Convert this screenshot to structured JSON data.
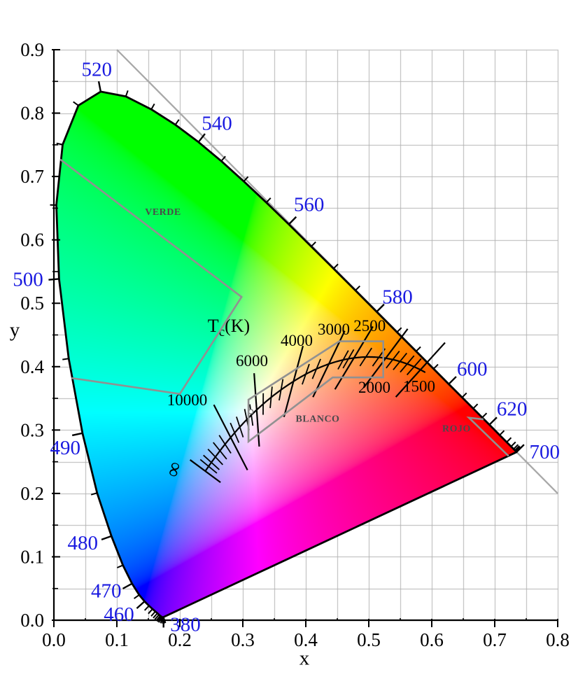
{
  "colors": {
    "background": "#ffffff",
    "grid": "#b5b5b5",
    "axis": "#000000",
    "locus_stroke": "#000000",
    "wavelength_label": "#1a1ae0",
    "xy1_line": "#a8a8a8",
    "planckian": "#000000",
    "region_outline": "#919191",
    "region_label": "#4a4a4a",
    "white_marker_stroke": "#808080"
  },
  "chart_data": {
    "type": "chromaticity-diagram",
    "title": "",
    "xlabel": "x",
    "ylabel": "y",
    "xlim": [
      0,
      0.8
    ],
    "ylim": [
      0,
      0.9
    ],
    "grid_step": 0.05,
    "label_step": 0.1,
    "x_tick_labels": [
      "0.0",
      "0.1",
      "0.2",
      "0.3",
      "0.4",
      "0.5",
      "0.6",
      "0.7",
      "0.8"
    ],
    "y_tick_labels": [
      "0.0",
      "0.1",
      "0.2",
      "0.3",
      "0.4",
      "0.5",
      "0.6",
      "0.7",
      "0.8",
      "0.9"
    ],
    "xy1_line": {
      "from": [
        0.1,
        0.9
      ],
      "to": [
        0.8,
        0.2
      ]
    },
    "spectral_locus": [
      [
        380,
        0.1741,
        0.005
      ],
      [
        385,
        0.174,
        0.005
      ],
      [
        390,
        0.1738,
        0.0049
      ],
      [
        395,
        0.1736,
        0.0049
      ],
      [
        400,
        0.1733,
        0.0048
      ],
      [
        405,
        0.173,
        0.0048
      ],
      [
        410,
        0.1726,
        0.0048
      ],
      [
        415,
        0.1721,
        0.0048
      ],
      [
        420,
        0.1714,
        0.0051
      ],
      [
        425,
        0.1703,
        0.0058
      ],
      [
        430,
        0.1689,
        0.0069
      ],
      [
        435,
        0.1669,
        0.0086
      ],
      [
        440,
        0.1644,
        0.0109
      ],
      [
        445,
        0.1611,
        0.0138
      ],
      [
        450,
        0.1566,
        0.0177
      ],
      [
        455,
        0.151,
        0.0227
      ],
      [
        460,
        0.144,
        0.0297
      ],
      [
        465,
        0.1355,
        0.0399
      ],
      [
        470,
        0.1241,
        0.0578
      ],
      [
        475,
        0.1096,
        0.0868
      ],
      [
        480,
        0.0913,
        0.1327
      ],
      [
        485,
        0.0687,
        0.2007
      ],
      [
        490,
        0.0454,
        0.295
      ],
      [
        495,
        0.0235,
        0.4127
      ],
      [
        500,
        0.0082,
        0.5384
      ],
      [
        505,
        0.0039,
        0.6548
      ],
      [
        510,
        0.0139,
        0.7502
      ],
      [
        515,
        0.0389,
        0.812
      ],
      [
        520,
        0.0743,
        0.8338
      ],
      [
        525,
        0.1142,
        0.8262
      ],
      [
        530,
        0.1547,
        0.8059
      ],
      [
        535,
        0.1929,
        0.7816
      ],
      [
        540,
        0.2296,
        0.7543
      ],
      [
        545,
        0.2658,
        0.7243
      ],
      [
        550,
        0.3016,
        0.6923
      ],
      [
        555,
        0.3373,
        0.6589
      ],
      [
        560,
        0.3731,
        0.6245
      ],
      [
        565,
        0.4087,
        0.5896
      ],
      [
        570,
        0.4441,
        0.5547
      ],
      [
        575,
        0.4788,
        0.5202
      ],
      [
        580,
        0.5125,
        0.4866
      ],
      [
        585,
        0.5448,
        0.4544
      ],
      [
        590,
        0.5752,
        0.4242
      ],
      [
        595,
        0.6029,
        0.3965
      ],
      [
        600,
        0.627,
        0.3725
      ],
      [
        605,
        0.6482,
        0.3514
      ],
      [
        610,
        0.6658,
        0.334
      ],
      [
        615,
        0.6801,
        0.3197
      ],
      [
        620,
        0.6915,
        0.3083
      ],
      [
        630,
        0.7079,
        0.292
      ],
      [
        640,
        0.719,
        0.2809
      ],
      [
        650,
        0.726,
        0.274
      ],
      [
        660,
        0.73,
        0.27
      ],
      [
        670,
        0.732,
        0.268
      ],
      [
        680,
        0.7334,
        0.2666
      ],
      [
        690,
        0.7344,
        0.2656
      ],
      [
        700,
        0.7347,
        0.2653
      ]
    ],
    "wavelength_major_ticks": [
      380,
      460,
      470,
      480,
      490,
      500,
      520,
      540,
      560,
      580,
      600,
      620,
      700
    ],
    "wavelength_labels": [
      {
        "nm": "380",
        "x": 0.2089,
        "y": -0.0063
      },
      {
        "nm": "460",
        "x": 0.1033,
        "y": 0.01
      },
      {
        "nm": "470",
        "x": 0.083,
        "y": 0.0471
      },
      {
        "nm": "480",
        "x": 0.0459,
        "y": 0.1226
      },
      {
        "nm": "490",
        "x": 0.0181,
        "y": 0.2725
      },
      {
        "nm": "500",
        "x": -0.0411,
        "y": 0.5385
      },
      {
        "nm": "520",
        "x": 0.0681,
        "y": 0.8698
      },
      {
        "nm": "540",
        "x": 0.2589,
        "y": 0.7844
      },
      {
        "nm": "560",
        "x": 0.4052,
        "y": 0.6563
      },
      {
        "nm": "580",
        "x": 0.5456,
        "y": 0.5109
      },
      {
        "nm": "600",
        "x": 0.6641,
        "y": 0.3968
      },
      {
        "nm": "620",
        "x": 0.7274,
        "y": 0.3342
      },
      {
        "nm": "700",
        "x": 0.7792,
        "y": 0.2661
      }
    ],
    "planckian": {
      "title": {
        "main": "T",
        "sub": "c",
        "rest": "(K)",
        "x": 0.2778,
        "y": 0.4648
      },
      "curve_mired_range": [
        0.15,
        714
      ],
      "isotherm_half_len": 0.058,
      "isotherm_minor_half_len": 0.017,
      "inf_half_len": 0.03,
      "isotherms": [
        {
          "label": "∞",
          "T": "inf",
          "lx": 0.2006,
          "ly": 0.244,
          "rot": -75
        },
        {
          "label": "10000",
          "T": 10000,
          "lx": 0.2117,
          "ly": 0.3481
        },
        {
          "label": "6000",
          "T": 6000,
          "lx": 0.3144,
          "ly": 0.4097
        },
        {
          "label": "4000",
          "T": 4000,
          "lx": 0.3856,
          "ly": 0.4417
        },
        {
          "label": "3000",
          "T": 3000,
          "lx": 0.4444,
          "ly": 0.4593
        },
        {
          "label": "2500",
          "T": 2500,
          "lx": 0.5014,
          "ly": 0.4649
        },
        {
          "label": "2000",
          "T": 2000,
          "lx": 0.5089,
          "ly": 0.3677
        },
        {
          "label": "1500",
          "T": 1500,
          "lx": 0.58,
          "ly": 0.3692
        }
      ],
      "minor_isotherm_T": [
        50000,
        30000,
        20000,
        15000,
        12000,
        9000,
        8000,
        7000,
        6500,
        5500,
        5000,
        4500,
        3600,
        3300,
        2700,
        2600,
        2300,
        2100,
        1900,
        1800,
        1700,
        1600
      ]
    },
    "white_point_marker": {
      "x": 0.3127,
      "y": 0.329
    },
    "regions": [
      {
        "name": "VERDE",
        "closed": false,
        "points": [
          [
            0.01,
            0.727
          ],
          [
            0.298,
            0.51
          ],
          [
            0.2,
            0.357
          ],
          [
            0.028,
            0.382
          ]
        ],
        "label": {
          "text": "VERDE",
          "x": 0.1733,
          "y": 0.6448
        }
      },
      {
        "name": "BLANCO",
        "closed": true,
        "points": [
          [
            0.309,
            0.3478
          ],
          [
            0.4531,
            0.44
          ],
          [
            0.523,
            0.44
          ],
          [
            0.523,
            0.383
          ],
          [
            0.4427,
            0.383
          ],
          [
            0.309,
            0.2818
          ]
        ],
        "label": {
          "text": "BLANCO",
          "x": 0.4189,
          "y": 0.3186
        }
      },
      {
        "name": "ROJO",
        "closed": false,
        "points": [
          [
            0.682,
            0.3168
          ],
          [
            0.659,
            0.3195
          ],
          [
            0.722,
            0.259
          ]
        ],
        "label": {
          "text": "ROJO",
          "x": 0.6394,
          "y": 0.3031
        }
      }
    ]
  }
}
